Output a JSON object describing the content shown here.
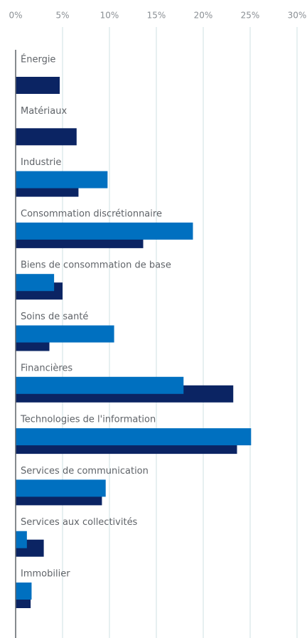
{
  "chart_data": {
    "type": "bar",
    "categories": [
      "Énergie",
      "Matériaux",
      "Industrie",
      "Consommation discrétionnaire",
      "Biens de consommation de base",
      "Soins de santé",
      "Financières",
      "Technologies de l'information",
      "Services de communication",
      "Services aux collectivités",
      "Immobilier"
    ],
    "series": [
      {
        "color": "#0070c0",
        "values": [
          null,
          null,
          9.8,
          18.9,
          4.1,
          10.5,
          17.9,
          25.1,
          9.6,
          1.2,
          1.7
        ]
      },
      {
        "color": "#0b2463",
        "values": [
          4.7,
          6.5,
          6.7,
          13.6,
          5.0,
          3.6,
          23.2,
          23.6,
          9.2,
          3.0,
          1.6
        ]
      }
    ],
    "xlim": [
      0,
      30
    ],
    "xticks": [
      {
        "value": 0,
        "label": "0%"
      },
      {
        "value": 5,
        "label": "5%"
      },
      {
        "value": 10,
        "label": "10%"
      },
      {
        "value": 15,
        "label": "15%"
      },
      {
        "value": 20,
        "label": "20%"
      },
      {
        "value": 25,
        "label": "25%"
      },
      {
        "value": 30,
        "label": "30%"
      }
    ],
    "grid": true
  }
}
